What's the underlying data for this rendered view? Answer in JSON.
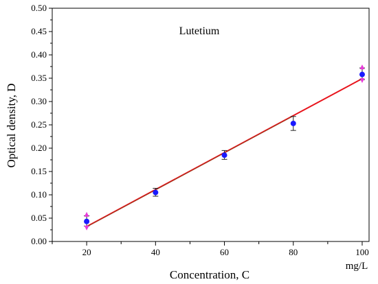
{
  "chart_data": {
    "type": "scatter",
    "title": "Lutetium",
    "xlabel": "Concentration, C",
    "ylabel": "Optical density, D",
    "x_unit": "mg/L",
    "xlim": [
      10,
      102
    ],
    "ylim": [
      0.0,
      0.5
    ],
    "x_ticks": [
      20,
      40,
      60,
      80,
      100
    ],
    "y_ticks": [
      "0.00",
      "0.05",
      "0.10",
      "0.15",
      "0.20",
      "0.25",
      "0.30",
      "0.35",
      "0.40",
      "0.45",
      "0.50"
    ],
    "grid": false,
    "legend": "none",
    "series": [
      {
        "kind": "points",
        "color": "#1a1aff",
        "x": [
          20,
          40,
          60,
          80,
          100
        ],
        "y": [
          0.043,
          0.105,
          0.185,
          0.253,
          0.358
        ],
        "error_low": [
          0.033,
          0.097,
          0.176,
          0.238,
          0.347
        ],
        "error_high": [
          0.055,
          0.114,
          0.195,
          0.268,
          0.372
        ]
      },
      {
        "kind": "fit-line",
        "color": "#e8141c",
        "x": [
          20,
          100
        ],
        "y": [
          0.032,
          0.349
        ]
      }
    ],
    "outlier_markers": {
      "color": "#e83ad9",
      "x": [
        20,
        20,
        100,
        100
      ],
      "y": [
        0.056,
        0.031,
        0.372,
        0.347
      ]
    }
  }
}
